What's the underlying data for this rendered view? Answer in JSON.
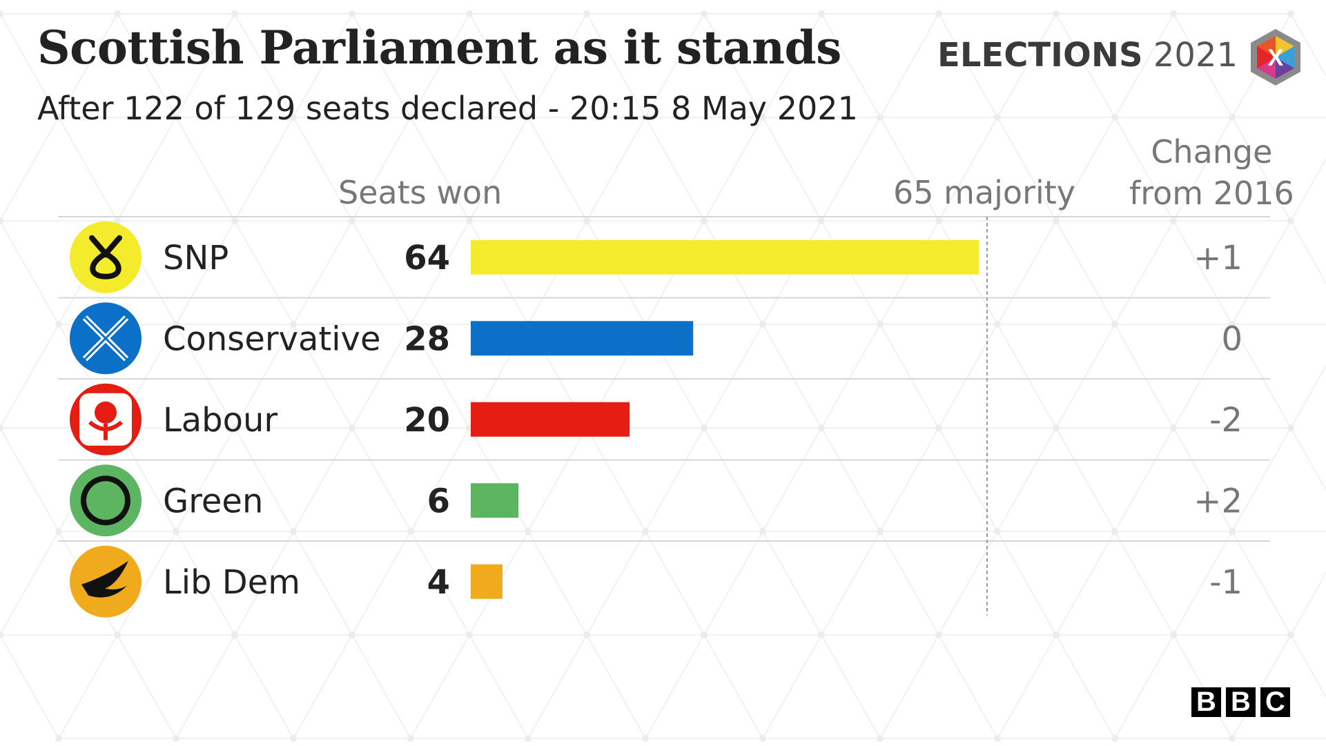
{
  "header": {
    "title": "Scottish Parliament as it stands",
    "subtitle": "After 122 of 129 seats declared - 20:15  8 May 2021",
    "brand_bold": "ELECTIONS",
    "brand_year": "2021",
    "brand_mark": "X"
  },
  "columns": {
    "seats": "Seats won",
    "majority": "65 majority",
    "change_line1": "Change",
    "change_line2": "from 2016"
  },
  "chart_data": {
    "type": "bar",
    "orientation": "horizontal",
    "title": "Scottish Parliament as it stands",
    "subtitle": "After 122 of 129 seats declared - 20:15  8 May 2021",
    "categories": [
      "SNP",
      "Conservative",
      "Labour",
      "Green",
      "Lib Dem"
    ],
    "values": [
      64,
      28,
      20,
      6,
      4
    ],
    "value_labels": [
      "64",
      "28",
      "20",
      "6",
      "4"
    ],
    "change_labels": [
      "+1",
      "0",
      "-2",
      "+2",
      "-1"
    ],
    "colors": [
      "#f5eb2d",
      "#0a70c8",
      "#e41c12",
      "#5db562",
      "#efab1c"
    ],
    "icons": [
      "snp-logo-icon",
      "conservative-logo-icon",
      "labour-rose-icon",
      "green-logo-icon",
      "libdem-bird-icon"
    ],
    "reference_line": {
      "value": 65,
      "label": "65 majority"
    },
    "xlim": [
      0,
      65
    ],
    "grid": false,
    "legend": "none"
  },
  "footer": {
    "logo": [
      "B",
      "B",
      "C"
    ]
  }
}
